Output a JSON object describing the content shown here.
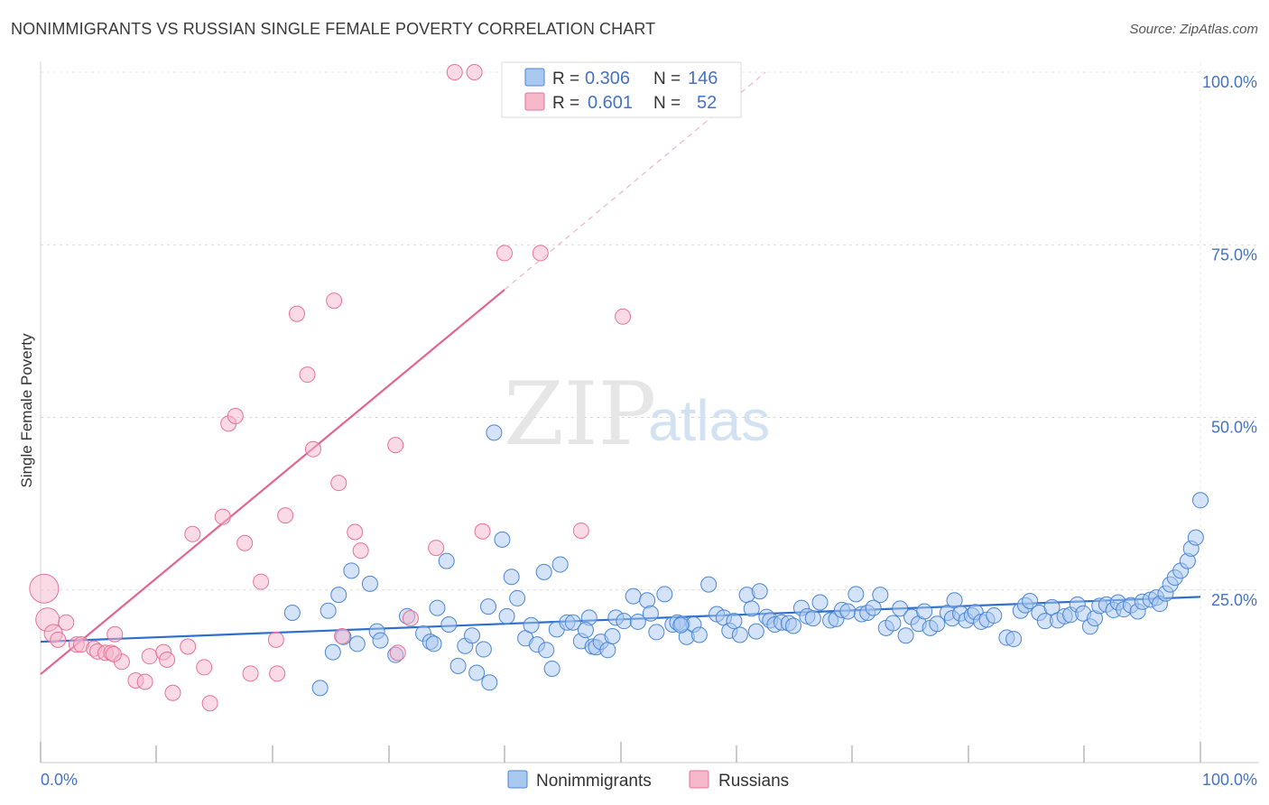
{
  "title": "NONIMMIGRANTS VS RUSSIAN SINGLE FEMALE POVERTY CORRELATION CHART",
  "source": "Source: ZipAtlas.com",
  "watermark": {
    "zip": "ZIP",
    "atlas": "atlas"
  },
  "legend": {
    "rows": [
      {
        "r_label": "R =",
        "r_value": "0.306",
        "n_label": "N =",
        "n_value": "146",
        "color": "#a9c8ef"
      },
      {
        "r_label": "R =",
        "r_value": "0.601",
        "n_label": "N =",
        "n_value": "52",
        "color": "#f5b8cb"
      }
    ]
  },
  "bottom_legend": [
    {
      "label": "Nonimmigrants",
      "color": "#a9c8ef"
    },
    {
      "label": "Russians",
      "color": "#f5b8cb"
    }
  ],
  "chart_data": {
    "type": "scatter",
    "title": "NONIMMIGRANTS VS RUSSIAN SINGLE FEMALE POVERTY CORRELATION CHART",
    "xlabel": "",
    "ylabel": "Single Female Poverty",
    "xlim": [
      0,
      100
    ],
    "ylim": [
      0,
      100
    ],
    "x_tick_labels": [
      "0.0%",
      "100.0%"
    ],
    "y_ticks": [
      25,
      50,
      75,
      100
    ],
    "y_tick_labels": [
      "25.0%",
      "50.0%",
      "75.0%",
      "100.0%"
    ],
    "grid": true,
    "legend_position": "top-center",
    "series": [
      {
        "name": "Nonimmigrants",
        "color": "#4a86d4",
        "fill": "#a9c8ef",
        "trend": {
          "x0": 0,
          "y0": 17.5,
          "x1": 100,
          "y1": 24.0
        },
        "points": [
          [
            21.7,
            21.7
          ],
          [
            24.8,
            22
          ],
          [
            25.2,
            16
          ],
          [
            25.7,
            24.3
          ],
          [
            26.1,
            18.2
          ],
          [
            26.8,
            27.8
          ],
          [
            27.3,
            17.2
          ],
          [
            24.1,
            10.8
          ],
          [
            28.4,
            25.9
          ],
          [
            29,
            19
          ],
          [
            29.3,
            17.7
          ],
          [
            30.6,
            15.6
          ],
          [
            31.6,
            21.2
          ],
          [
            33,
            18.7
          ],
          [
            33.6,
            17.5
          ],
          [
            33.9,
            17.2
          ],
          [
            35,
            29.2
          ],
          [
            35.2,
            20
          ],
          [
            36,
            14
          ],
          [
            36.6,
            16.9
          ],
          [
            37.2,
            18.4
          ],
          [
            37.6,
            13
          ],
          [
            38.2,
            16.4
          ],
          [
            38.6,
            22.6
          ],
          [
            38.7,
            11.6
          ],
          [
            39.1,
            47.8
          ],
          [
            39.8,
            32.3
          ],
          [
            40.2,
            21.2
          ],
          [
            40.6,
            26.9
          ],
          [
            41.1,
            23.8
          ],
          [
            41.8,
            18
          ],
          [
            42.3,
            19.9
          ],
          [
            42.8,
            17.1
          ],
          [
            43.4,
            27.6
          ],
          [
            43.6,
            16.3
          ],
          [
            44.1,
            13.6
          ],
          [
            44.5,
            19.3
          ],
          [
            44.8,
            28.7
          ],
          [
            45.4,
            20.3
          ],
          [
            45.9,
            20.3
          ],
          [
            46.6,
            17.6
          ],
          [
            47.3,
            21
          ],
          [
            47.6,
            16.8
          ],
          [
            47.9,
            16.7
          ],
          [
            48.3,
            17.5
          ],
          [
            48.9,
            16.3
          ],
          [
            49.3,
            18.3
          ],
          [
            49.6,
            21
          ],
          [
            50.3,
            20.5
          ],
          [
            51.1,
            24.1
          ],
          [
            51.5,
            20.4
          ],
          [
            52.3,
            23.5
          ],
          [
            52.6,
            21.6
          ],
          [
            53.1,
            18.9
          ],
          [
            53.8,
            24.4
          ],
          [
            54.5,
            20
          ],
          [
            54.9,
            20.3
          ],
          [
            55.3,
            20.1
          ],
          [
            55.7,
            18.2
          ],
          [
            56.3,
            20
          ],
          [
            56.8,
            18.5
          ],
          [
            57.6,
            25.8
          ],
          [
            58.3,
            21.5
          ],
          [
            58.9,
            21
          ],
          [
            59.4,
            19.1
          ],
          [
            59.8,
            20.5
          ],
          [
            60.3,
            18.5
          ],
          [
            60.9,
            24.3
          ],
          [
            61.3,
            22.3
          ],
          [
            62,
            24.8
          ],
          [
            62.6,
            21.1
          ],
          [
            62.9,
            20.6
          ],
          [
            63.3,
            20
          ],
          [
            63.9,
            20.3
          ],
          [
            64.5,
            20.2
          ],
          [
            64.9,
            19.8
          ],
          [
            65.6,
            22.4
          ],
          [
            66.1,
            21.2
          ],
          [
            66.6,
            20.9
          ],
          [
            67.2,
            23.2
          ],
          [
            68.1,
            20.6
          ],
          [
            68.6,
            20.8
          ],
          [
            69.1,
            22.1
          ],
          [
            69.6,
            21.9
          ],
          [
            70.3,
            24.4
          ],
          [
            70.8,
            21.5
          ],
          [
            71.3,
            21.7
          ],
          [
            71.8,
            22.4
          ],
          [
            72.4,
            24.3
          ],
          [
            72.9,
            19.5
          ],
          [
            73.5,
            20.2
          ],
          [
            74.1,
            22.3
          ],
          [
            74.6,
            18.4
          ],
          [
            75.1,
            21.1
          ],
          [
            75.7,
            20.1
          ],
          [
            76.2,
            21.9
          ],
          [
            76.7,
            19.5
          ],
          [
            77.3,
            20.1
          ],
          [
            78.2,
            21.7
          ],
          [
            78.6,
            20.9
          ],
          [
            78.8,
            23.5
          ],
          [
            79.3,
            21.6
          ],
          [
            79.8,
            20.6
          ],
          [
            80.3,
            21.3
          ],
          [
            80.6,
            21.8
          ],
          [
            81.1,
            20.4
          ],
          [
            81.6,
            20.7
          ],
          [
            82.2,
            21.3
          ],
          [
            83.3,
            18.1
          ],
          [
            83.9,
            17.9
          ],
          [
            84.5,
            22
          ],
          [
            84.9,
            22.8
          ],
          [
            85.3,
            23.4
          ],
          [
            86.1,
            21.7
          ],
          [
            86.6,
            20.5
          ],
          [
            87.2,
            22.5
          ],
          [
            87.7,
            20.6
          ],
          [
            88.3,
            21.2
          ],
          [
            88.8,
            21.4
          ],
          [
            89.4,
            22.9
          ],
          [
            89.9,
            21.6
          ],
          [
            90.5,
            19.7
          ],
          [
            90.9,
            20.9
          ],
          [
            91.3,
            22.7
          ],
          [
            91.9,
            22.9
          ],
          [
            92.5,
            22.1
          ],
          [
            92.9,
            23.2
          ],
          [
            93.4,
            22.2
          ],
          [
            94,
            22.8
          ],
          [
            94.6,
            21.9
          ],
          [
            95,
            23.3
          ],
          [
            95.7,
            23.6
          ],
          [
            96.2,
            23.9
          ],
          [
            96.5,
            23
          ],
          [
            97,
            24.5
          ],
          [
            97.4,
            25.8
          ],
          [
            97.8,
            26.8
          ],
          [
            98.3,
            27.8
          ],
          [
            98.9,
            29.2
          ],
          [
            99.2,
            31
          ],
          [
            99.6,
            32.6
          ],
          [
            100,
            38
          ],
          [
            55.2,
            19.9
          ],
          [
            47.0,
            19.2
          ],
          [
            61.7,
            19.0
          ],
          [
            34.2,
            22.4
          ]
        ]
      },
      {
        "name": "Russians",
        "color": "#e8709a",
        "fill": "#f5b8cb",
        "trend": {
          "x0": 0,
          "y0": 12.8,
          "x1": 40,
          "y1": 68.5,
          "dashed_to": {
            "x": 62.5,
            "y": 100
          }
        },
        "points": [
          [
            0.3,
            25.2
          ],
          [
            0.6,
            20.7
          ],
          [
            1.1,
            18.7
          ],
          [
            1.5,
            17.8
          ],
          [
            2.2,
            20.3
          ],
          [
            3.1,
            17.1
          ],
          [
            3.5,
            17.1
          ],
          [
            4.6,
            16.5
          ],
          [
            4.9,
            16.1
          ],
          [
            5.6,
            15.9
          ],
          [
            6.4,
            18.6
          ],
          [
            6.1,
            15.9
          ],
          [
            7,
            14.6
          ],
          [
            6.3,
            15.7
          ],
          [
            8.2,
            11.9
          ],
          [
            9.4,
            15.4
          ],
          [
            9,
            11.7
          ],
          [
            10.6,
            16
          ],
          [
            10.9,
            14.9
          ],
          [
            11.4,
            10.1
          ],
          [
            12.7,
            16.8
          ],
          [
            14.1,
            13.8
          ],
          [
            13.1,
            33.1
          ],
          [
            14.6,
            8.6
          ],
          [
            15.7,
            35.6
          ],
          [
            16.2,
            49.1
          ],
          [
            16.8,
            50.2
          ],
          [
            17.6,
            31.8
          ],
          [
            18.1,
            12.9
          ],
          [
            19,
            26.2
          ],
          [
            20.3,
            17.8
          ],
          [
            20.4,
            12.9
          ],
          [
            21.1,
            35.8
          ],
          [
            22.1,
            65
          ],
          [
            23,
            56.2
          ],
          [
            23.5,
            45.4
          ],
          [
            25.3,
            66.9
          ],
          [
            25.7,
            40.5
          ],
          [
            26,
            18.3
          ],
          [
            27.1,
            33.4
          ],
          [
            27.6,
            30.7
          ],
          [
            30.6,
            46
          ],
          [
            30.8,
            15.9
          ],
          [
            31.9,
            20.9
          ],
          [
            34.1,
            31.1
          ],
          [
            35.7,
            100
          ],
          [
            37.4,
            100
          ],
          [
            40,
            73.8
          ],
          [
            43.1,
            73.8
          ],
          [
            46.6,
            33.6
          ],
          [
            50.2,
            64.6
          ],
          [
            38.1,
            33.5
          ]
        ]
      }
    ]
  }
}
